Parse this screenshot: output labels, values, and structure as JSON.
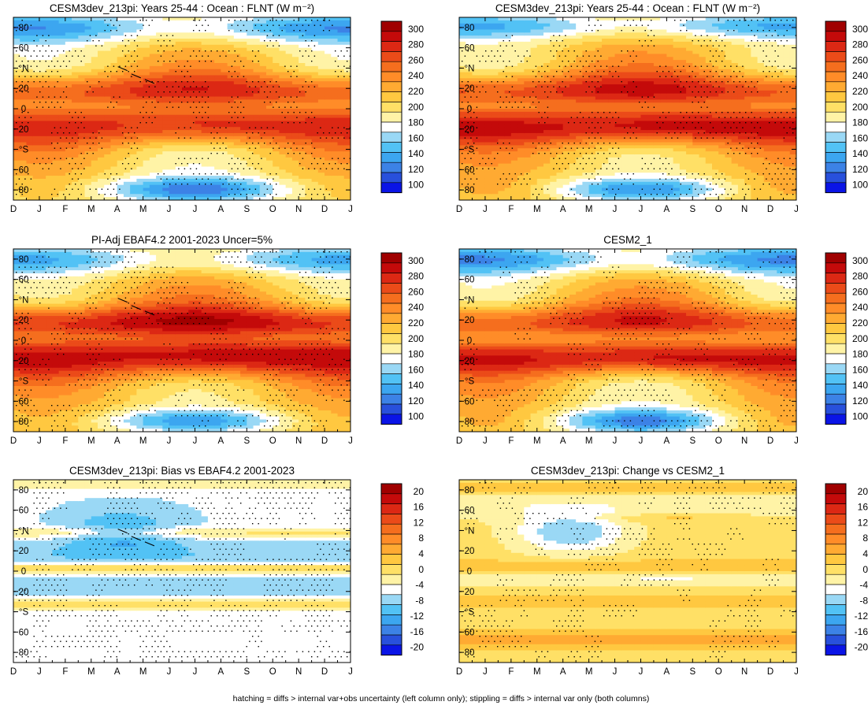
{
  "footer": "hatching = diffs > internal var+obs uncertainty (left column only); stippling = diffs > internal var only (both columns)",
  "chart_data": [
    {
      "type": "heatmap",
      "title": "CESM3dev_213pi: Years 25-44 : Ocean : FLNT (W m⁻²)",
      "title_sup": "-2",
      "field": "abs_a",
      "hatch": true,
      "stipple": 0.55,
      "xticks": [
        "D",
        "J",
        "F",
        "M",
        "A",
        "M",
        "J",
        "J",
        "A",
        "S",
        "O",
        "N",
        "D",
        "J"
      ],
      "yticks": [
        "80",
        "60",
        "40",
        "20",
        "0",
        "-20",
        "-40",
        "-60",
        "-80"
      ],
      "ylabels": [
        "80",
        "60",
        "°N",
        "20",
        "0",
        "20",
        "°S",
        "60",
        "80"
      ],
      "ylim": [
        -90,
        90
      ],
      "colorbar": {
        "levels": [
          "300",
          "280",
          "260",
          "240",
          "220",
          "200",
          "180",
          "160",
          "140",
          "120",
          "100"
        ],
        "min": 90,
        "max": 310,
        "colors": [
          "#0a14e6",
          "#2850dc",
          "#3c82e6",
          "#3ca6f0",
          "#52c2f5",
          "#9ad8f5",
          "#ffffff",
          "#fff3a6",
          "#ffe066",
          "#ffc840",
          "#ffaa32",
          "#ff8c28",
          "#f56e1e",
          "#eb4b19",
          "#dc2814",
          "#c40a0a",
          "#a00000"
        ]
      }
    },
    {
      "type": "heatmap",
      "title": "CESM3dev_213pi: Years 25-44 : Ocean : FLNT (W m⁻²)",
      "title_sup": "-2",
      "field": "abs_b",
      "hatch": false,
      "stipple": 0.5,
      "xticks": [
        "D",
        "J",
        "F",
        "M",
        "A",
        "M",
        "J",
        "J",
        "A",
        "S",
        "O",
        "N",
        "D",
        "J"
      ],
      "yticks": [
        "80",
        "60",
        "40",
        "20",
        "0",
        "-20",
        "-40",
        "-60",
        "-80"
      ],
      "ylabels": [
        "80",
        "60",
        "°N",
        "20",
        "0",
        "20",
        "°S",
        "60",
        "80"
      ],
      "ylim": [
        -90,
        90
      ],
      "colorbar": {
        "levels": [
          "300",
          "280",
          "260",
          "240",
          "220",
          "200",
          "180",
          "160",
          "140",
          "120",
          "100"
        ],
        "min": 90,
        "max": 310,
        "colors": [
          "#0a14e6",
          "#2850dc",
          "#3c82e6",
          "#3ca6f0",
          "#52c2f5",
          "#9ad8f5",
          "#ffffff",
          "#fff3a6",
          "#ffe066",
          "#ffc840",
          "#ffaa32",
          "#ff8c28",
          "#f56e1e",
          "#eb4b19",
          "#dc2814",
          "#c40a0a",
          "#a00000"
        ]
      }
    },
    {
      "type": "heatmap",
      "title": "PI-Adj EBAF4.2 2001-2023 Uncer=5%",
      "title_sup": "",
      "field": "abs_obs",
      "hatch": true,
      "stipple": 0.6,
      "xticks": [
        "D",
        "J",
        "F",
        "M",
        "A",
        "M",
        "J",
        "J",
        "A",
        "S",
        "O",
        "N",
        "D",
        "J"
      ],
      "yticks": [
        "80",
        "60",
        "40",
        "20",
        "0",
        "-20",
        "-40",
        "-60",
        "-80"
      ],
      "ylabels": [
        "80",
        "60",
        "°N",
        "20",
        "0",
        "20",
        "°S",
        "60",
        "80"
      ],
      "ylim": [
        -90,
        90
      ],
      "colorbar": {
        "levels": [
          "300",
          "280",
          "260",
          "240",
          "220",
          "200",
          "180",
          "160",
          "140",
          "120",
          "100"
        ],
        "min": 90,
        "max": 310,
        "colors": [
          "#0a14e6",
          "#2850dc",
          "#3c82e6",
          "#3ca6f0",
          "#52c2f5",
          "#9ad8f5",
          "#ffffff",
          "#fff3a6",
          "#ffe066",
          "#ffc840",
          "#ffaa32",
          "#ff8c28",
          "#f56e1e",
          "#eb4b19",
          "#dc2814",
          "#c40a0a",
          "#a00000"
        ]
      }
    },
    {
      "type": "heatmap",
      "title": "CESM2_1",
      "title_sup": "",
      "field": "abs_cesm2",
      "hatch": false,
      "stipple": 0.5,
      "xticks": [
        "D",
        "J",
        "F",
        "M",
        "A",
        "M",
        "J",
        "J",
        "A",
        "S",
        "O",
        "N",
        "D",
        "J"
      ],
      "yticks": [
        "80",
        "60",
        "40",
        "20",
        "0",
        "-20",
        "-40",
        "-60",
        "-80"
      ],
      "ylabels": [
        "80",
        "60",
        "°N",
        "20",
        "0",
        "20",
        "°S",
        "60",
        "80"
      ],
      "ylim": [
        -90,
        90
      ],
      "colorbar": {
        "levels": [
          "300",
          "280",
          "260",
          "240",
          "220",
          "200",
          "180",
          "160",
          "140",
          "120",
          "100"
        ],
        "min": 90,
        "max": 310,
        "colors": [
          "#0a14e6",
          "#2850dc",
          "#3c82e6",
          "#3ca6f0",
          "#52c2f5",
          "#9ad8f5",
          "#ffffff",
          "#fff3a6",
          "#ffe066",
          "#ffc840",
          "#ffaa32",
          "#ff8c28",
          "#f56e1e",
          "#eb4b19",
          "#dc2814",
          "#c40a0a",
          "#a00000"
        ]
      }
    },
    {
      "type": "heatmap",
      "title": "CESM3dev_213pi: Bias vs EBAF4.2 2001-2023",
      "title_sup": "",
      "field": "bias",
      "hatch": true,
      "stipple": 0.7,
      "xticks": [
        "D",
        "J",
        "F",
        "M",
        "A",
        "M",
        "J",
        "J",
        "A",
        "S",
        "O",
        "N",
        "D",
        "J"
      ],
      "yticks": [
        "80",
        "60",
        "40",
        "20",
        "0",
        "-20",
        "-40",
        "-60",
        "-80"
      ],
      "ylabels": [
        "80",
        "60",
        "°N",
        "20",
        "0",
        "20",
        "°S",
        "60",
        "80"
      ],
      "ylim": [
        -90,
        90
      ],
      "colorbar": {
        "levels": [
          "20",
          "16",
          "12",
          "8",
          "4",
          "0",
          "-4",
          "-8",
          "-12",
          "-16",
          "-20"
        ],
        "min": -22,
        "max": 22,
        "colors": [
          "#0a14e6",
          "#2850dc",
          "#3c82e6",
          "#3ca6f0",
          "#52c2f5",
          "#9ad8f5",
          "#ffffff",
          "#fff3a6",
          "#ffe066",
          "#ffc840",
          "#ffaa32",
          "#ff8c28",
          "#f56e1e",
          "#eb4b19",
          "#dc2814",
          "#c40a0a",
          "#a00000"
        ]
      }
    },
    {
      "type": "heatmap",
      "title": "CESM3dev_213pi: Change vs CESM2_1",
      "title_sup": "",
      "field": "change",
      "hatch": false,
      "stipple": 0.4,
      "xticks": [
        "D",
        "J",
        "F",
        "M",
        "A",
        "M",
        "J",
        "J",
        "A",
        "S",
        "O",
        "N",
        "D",
        "J"
      ],
      "yticks": [
        "80",
        "60",
        "40",
        "20",
        "0",
        "-20",
        "-40",
        "-60",
        "-80"
      ],
      "ylabels": [
        "80",
        "60",
        "°N",
        "20",
        "0",
        "20",
        "°S",
        "60",
        "80"
      ],
      "ylim": [
        -90,
        90
      ],
      "colorbar": {
        "levels": [
          "20",
          "16",
          "12",
          "8",
          "4",
          "0",
          "-4",
          "-8",
          "-12",
          "-16",
          "-20"
        ],
        "min": -22,
        "max": 22,
        "colors": [
          "#0a14e6",
          "#2850dc",
          "#3c82e6",
          "#3ca6f0",
          "#52c2f5",
          "#9ad8f5",
          "#ffffff",
          "#fff3a6",
          "#ffe066",
          "#ffc840",
          "#ffaa32",
          "#ff8c28",
          "#f56e1e",
          "#eb4b19",
          "#dc2814",
          "#c40a0a",
          "#a00000"
        ]
      }
    }
  ]
}
